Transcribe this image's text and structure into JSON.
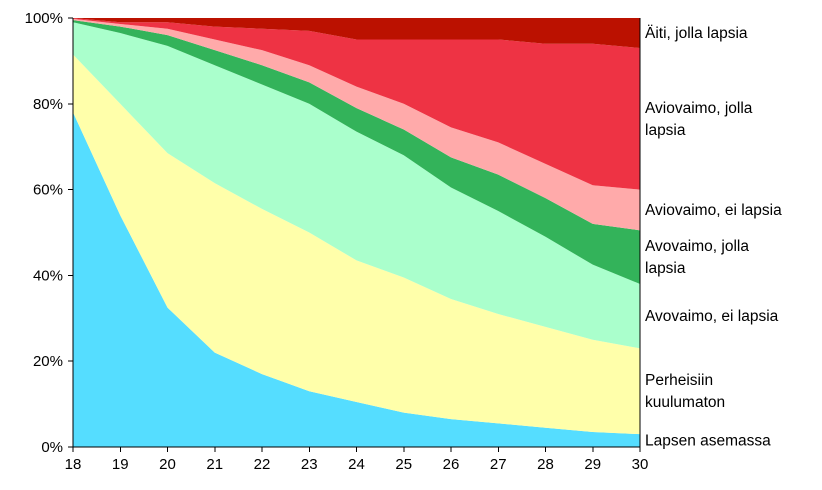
{
  "chart_data": {
    "type": "area",
    "stacked": true,
    "x": [
      18,
      19,
      20,
      21,
      22,
      23,
      24,
      25,
      26,
      27,
      28,
      29,
      30
    ],
    "y_ticks": [
      "0%",
      "20%",
      "40%",
      "60%",
      "80%",
      "100%"
    ],
    "ylim": [
      0,
      100
    ],
    "grid": false,
    "legend_placement": "right, labels beside series",
    "series": [
      {
        "name": "Lapsen asemassa",
        "color": "#55DDFF",
        "values": [
          78,
          54,
          32.5,
          22,
          17,
          13,
          10.5,
          8,
          6.5,
          5.5,
          4.5,
          3.5,
          3
        ]
      },
      {
        "name": "Perheisiin kuulumaton",
        "color": "#FFFFAA",
        "values": [
          13.5,
          26,
          36,
          39.5,
          38.5,
          37,
          33,
          31.5,
          28,
          25.5,
          23.5,
          21.5,
          20
        ]
      },
      {
        "name": "Avovaimo, ei lapsia",
        "color": "#AAFFCC",
        "values": [
          7.5,
          16.5,
          25,
          27.5,
          29,
          30,
          30,
          28.5,
          26,
          24,
          21,
          17.5,
          15
        ]
      },
      {
        "name": "Avovaimo, jolla lapsia",
        "color": "#33B35A",
        "values": [
          0.5,
          1.5,
          2.5,
          3.5,
          4.5,
          5,
          5.5,
          6,
          7,
          8.5,
          9,
          9.5,
          12.5
        ]
      },
      {
        "name": "Aviovaimo, ei lapsia",
        "color": "#FFAAAA",
        "values": [
          0.3,
          0.6,
          1.5,
          2.5,
          3.5,
          4,
          5,
          6,
          7,
          7.5,
          8,
          9,
          9.5
        ]
      },
      {
        "name": "Aviovaimo, jolla lapsia",
        "color": "#EE3344",
        "values": [
          0.2,
          0.4,
          1.5,
          3,
          5,
          8,
          11,
          15,
          20.5,
          24,
          28,
          33,
          33
        ]
      },
      {
        "name": "Äiti, jolla lapsia",
        "color": "#BB1100",
        "values": [
          0.1,
          0.5,
          1,
          2,
          2.5,
          3,
          5,
          5,
          5,
          5.5,
          6,
          6,
          7
        ]
      }
    ],
    "legend_lines": [
      [
        "Äiti, jolla lapsia"
      ],
      [
        "Aviovaimo, jolla",
        "lapsia"
      ],
      [
        "Aviovaimo, ei lapsia"
      ],
      [
        "Avovaimo, jolla",
        "lapsia"
      ],
      [
        "Avovaimo, ei lapsia"
      ],
      [
        "Perheisiin",
        "kuulumaton"
      ],
      [
        "Lapsen asemassa"
      ]
    ]
  }
}
